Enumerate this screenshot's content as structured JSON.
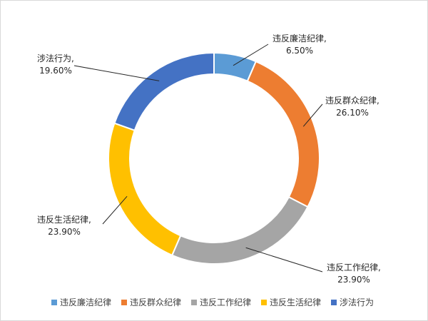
{
  "chart_data": {
    "type": "pie",
    "donut": true,
    "categories": [
      "违反廉洁纪律",
      "违反群众纪律",
      "违反工作纪律",
      "违反生活纪律",
      "涉法行为"
    ],
    "values": [
      6.5,
      26.1,
      23.9,
      23.9,
      19.6
    ],
    "value_labels": [
      "6.50%",
      "26.10%",
      "23.90%",
      "23.90%",
      "19.60%"
    ],
    "label_suffix": ",",
    "colors": [
      "#5B9BD5",
      "#ED7D31",
      "#A5A5A5",
      "#FFC000",
      "#4472C4"
    ],
    "legend_position": "bottom"
  }
}
